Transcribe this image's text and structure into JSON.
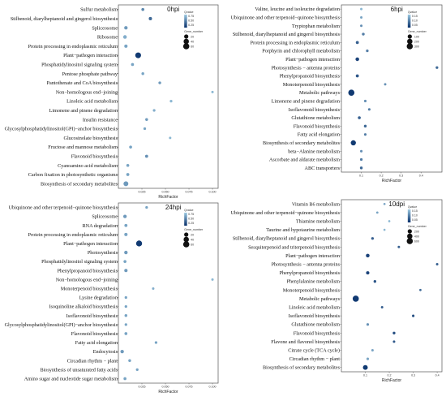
{
  "colors": {
    "low": "#08306b",
    "high": "#9ecae1",
    "frame": "#555555"
  },
  "chart_data": [
    {
      "type": "scatter",
      "title": "0hpi",
      "xlabel": "RichFactor",
      "xlim": [
        0,
        0.106
      ],
      "xticks": [
        0.025,
        0.05,
        0.075,
        0.1
      ],
      "xtick_labels": [
        "0.025",
        "0.050",
        "0.075",
        "0.100"
      ],
      "legend_qvalue": {
        "title": "Qvalue",
        "ticks": [
          "0.75",
          "0.50",
          "0.25"
        ]
      },
      "legend_gene": {
        "title": "Gene_number",
        "items": [
          {
            "label": "20",
            "value": 20
          },
          {
            "label": "40",
            "value": 40
          },
          {
            "label": "60",
            "value": 60
          }
        ]
      },
      "points": [
        {
          "term": "Sulfur metabolism",
          "x": 0.026,
          "q": 0.45,
          "gene": 5
        },
        {
          "term": "Stilbenoid, diarylheptanoid and gingerol biosynthesis",
          "x": 0.034,
          "q": 0.3,
          "gene": 8
        },
        {
          "term": "Spliceosome",
          "x": 0.008,
          "q": 0.55,
          "gene": 10
        },
        {
          "term": "Ribosome",
          "x": 0.007,
          "q": 0.65,
          "gene": 12
        },
        {
          "term": "Protein processing in endoplasmic reticulum",
          "x": 0.008,
          "q": 0.6,
          "gene": 8
        },
        {
          "term": "Plant−pathogen interaction",
          "x": 0.021,
          "q": 0.05,
          "gene": 50
        },
        {
          "term": "Phosphatidylinositol signaling system",
          "x": 0.015,
          "q": 0.6,
          "gene": 5
        },
        {
          "term": "Pentose phosphate pathway",
          "x": 0.026,
          "q": 0.6,
          "gene": 4
        },
        {
          "term": "Pantothenate and CoA biosynthesis",
          "x": 0.044,
          "q": 0.55,
          "gene": 4
        },
        {
          "term": "Non−homologous end−joining",
          "x": 0.1,
          "q": 0.7,
          "gene": 2
        },
        {
          "term": "Linoleic acid metabolism",
          "x": 0.056,
          "q": 0.7,
          "gene": 3
        },
        {
          "term": "Limonene and pinene degradation",
          "x": 0.038,
          "q": 0.65,
          "gene": 3
        },
        {
          "term": "Insulin resistance",
          "x": 0.03,
          "q": 0.55,
          "gene": 4
        },
        {
          "term": "Glycosylphosphatidylinositol(GPI)−anchor biosynthesis",
          "x": 0.028,
          "q": 0.6,
          "gene": 3
        },
        {
          "term": "Glucosinolate biosynthesis",
          "x": 0.055,
          "q": 0.7,
          "gene": 2
        },
        {
          "term": "Fructose and mannose metabolism",
          "x": 0.013,
          "q": 0.6,
          "gene": 5
        },
        {
          "term": "Flavonoid biosynthesis",
          "x": 0.03,
          "q": 0.5,
          "gene": 6
        },
        {
          "term": "Cyanoamino acid metabolism",
          "x": 0.01,
          "q": 0.6,
          "gene": 5
        },
        {
          "term": "Carbon fixation in photosynthetic organisms",
          "x": 0.01,
          "q": 0.6,
          "gene": 6
        },
        {
          "term": "Biosynthesis of secondary metabolites",
          "x": 0.008,
          "q": 0.55,
          "gene": 30
        }
      ]
    },
    {
      "type": "scatter",
      "title": "6hpi",
      "xlabel": "RichFactor",
      "xlim": [
        0,
        0.505
      ],
      "xticks": [
        0.1,
        0.2,
        0.3,
        0.4
      ],
      "xtick_labels": [
        "0.1",
        "0.2",
        "0.3",
        "0.4"
      ],
      "legend_qvalue": {
        "title": "Qvalue",
        "ticks": [
          "0.15",
          "0.10",
          "0.05"
        ]
      },
      "legend_gene": {
        "title": "Gene_number",
        "items": [
          {
            "label": "100",
            "value": 100
          },
          {
            "label": "200",
            "value": 200
          },
          {
            "label": "300",
            "value": 300
          }
        ]
      },
      "points": [
        {
          "term": "Valine, leucine and isoleucine degradation",
          "x": 0.1,
          "q": 0.14,
          "gene": 10
        },
        {
          "term": "Ubiquinone and other terpenoid−quinone biosynthesis",
          "x": 0.1,
          "q": 0.12,
          "gene": 10
        },
        {
          "term": "Tryptophan metabolism",
          "x": 0.1,
          "q": 0.1,
          "gene": 10
        },
        {
          "term": "Stilbenoid, diarylheptanoid and gingerol biosynthesis",
          "x": 0.11,
          "q": 0.08,
          "gene": 20
        },
        {
          "term": "Protein processing in endoplasmic reticulum",
          "x": 0.08,
          "q": 0.05,
          "gene": 30
        },
        {
          "term": "Porphyrin and chlorophyll metabolism",
          "x": 0.13,
          "q": 0.08,
          "gene": 15
        },
        {
          "term": "Plant−pathogen interaction",
          "x": 0.08,
          "q": 0.02,
          "gene": 60
        },
        {
          "term": "Photosynthesis − antenna proteins",
          "x": 0.48,
          "q": 0.06,
          "gene": 15
        },
        {
          "term": "Phenylpropanoid biosynthesis",
          "x": 0.08,
          "q": 0.04,
          "gene": 30
        },
        {
          "term": "Monoterpenoid biosynthesis",
          "x": 0.22,
          "q": 0.1,
          "gene": 8
        },
        {
          "term": "Metabolic pathways",
          "x": 0.05,
          "q": 0.01,
          "gene": 300
        },
        {
          "term": "Limonene and pinene degradation",
          "x": 0.12,
          "q": 0.1,
          "gene": 12
        },
        {
          "term": "Isoflavonoid biosynthesis",
          "x": 0.14,
          "q": 0.08,
          "gene": 12
        },
        {
          "term": "Glutathione metabolism",
          "x": 0.09,
          "q": 0.05,
          "gene": 25
        },
        {
          "term": "Flavonoid biosynthesis",
          "x": 0.12,
          "q": 0.06,
          "gene": 20
        },
        {
          "term": "Fatty acid elongation",
          "x": 0.12,
          "q": 0.08,
          "gene": 12
        },
        {
          "term": "Biosynthesis of secondary metabolites",
          "x": 0.06,
          "q": 0.01,
          "gene": 180
        },
        {
          "term": "beta−Alanine metabolism",
          "x": 0.1,
          "q": 0.1,
          "gene": 12
        },
        {
          "term": "Ascorbate and aldarate metabolism",
          "x": 0.1,
          "q": 0.08,
          "gene": 15
        },
        {
          "term": "ABC transporters",
          "x": 0.1,
          "q": 0.06,
          "gene": 20
        }
      ]
    },
    {
      "type": "scatter",
      "title": "24hpi",
      "xlabel": "RichFactor",
      "xlim": [
        0,
        0.106
      ],
      "xticks": [
        0.025,
        0.05,
        0.075,
        0.1
      ],
      "xtick_labels": [
        "0.025",
        "0.050",
        "0.075",
        "0.100"
      ],
      "legend_qvalue": {
        "title": "Qvalue",
        "ticks": [
          "0.75",
          "0.50",
          "0.25"
        ]
      },
      "legend_gene": {
        "title": "Gene_number",
        "items": [
          {
            "label": "20",
            "value": 20
          },
          {
            "label": "40",
            "value": 40
          },
          {
            "label": "60",
            "value": 60
          }
        ]
      },
      "points": [
        {
          "term": "Ubiquinone and other terpenoid−quinone biosynthesis",
          "x": 0.03,
          "q": 0.6,
          "gene": 3
        },
        {
          "term": "Spliceosome",
          "x": 0.007,
          "q": 0.55,
          "gene": 10
        },
        {
          "term": "RNA degradation",
          "x": 0.008,
          "q": 0.6,
          "gene": 6
        },
        {
          "term": "Protein processing in endoplasmic reticulum",
          "x": 0.008,
          "q": 0.6,
          "gene": 8
        },
        {
          "term": "Plant−pathogen interaction",
          "x": 0.022,
          "q": 0.05,
          "gene": 55
        },
        {
          "term": "Photosynthesis",
          "x": 0.008,
          "q": 0.55,
          "gene": 10
        },
        {
          "term": "Phosphatidylinositol signaling system",
          "x": 0.007,
          "q": 0.6,
          "gene": 5
        },
        {
          "term": "Phenylpropanoid biosynthesis",
          "x": 0.008,
          "q": 0.55,
          "gene": 8
        },
        {
          "term": "Non−homologous end−joining",
          "x": 0.1,
          "q": 0.7,
          "gene": 2
        },
        {
          "term": "Monoterpenoid biosynthesis",
          "x": 0.037,
          "q": 0.65,
          "gene": 2
        },
        {
          "term": "Lysine degradation",
          "x": 0.008,
          "q": 0.6,
          "gene": 3
        },
        {
          "term": "Isoquinoline alkaloid biosynthesis",
          "x": 0.008,
          "q": 0.6,
          "gene": 3
        },
        {
          "term": "Isoflavonoid biosynthesis",
          "x": 0.008,
          "q": 0.6,
          "gene": 4
        },
        {
          "term": "Glycosylphosphatidylinositol(GPI)−anchor biosynthesis",
          "x": 0.008,
          "q": 0.6,
          "gene": 3
        },
        {
          "term": "Flavonoid biosynthesis",
          "x": 0.008,
          "q": 0.6,
          "gene": 5
        },
        {
          "term": "Fatty acid elongation",
          "x": 0.04,
          "q": 0.6,
          "gene": 3
        },
        {
          "term": "Endocytosis",
          "x": 0.004,
          "q": 0.55,
          "gene": 10
        },
        {
          "term": "Circadian rhythm − plant",
          "x": 0.012,
          "q": 0.6,
          "gene": 4
        },
        {
          "term": "Biosynthesis of unsaturated fatty acids",
          "x": 0.02,
          "q": 0.6,
          "gene": 3
        },
        {
          "term": "Amino sugar and nucleotide sugar metabolism",
          "x": 0.007,
          "q": 0.6,
          "gene": 5
        }
      ]
    },
    {
      "type": "scatter",
      "title": "10dpi",
      "xlabel": "RichFactor",
      "xlim": [
        0,
        0.42
      ],
      "xticks": [
        0.1,
        0.2,
        0.3,
        0.4
      ],
      "xtick_labels": [
        "0.1",
        "0.2",
        "0.3",
        "0.4"
      ],
      "legend_qvalue": {
        "title": "Qvalue",
        "ticks": [
          "0.15",
          "0.10",
          "0.05"
        ]
      },
      "legend_gene": {
        "title": "Gene_number",
        "items": [
          {
            "label": "200",
            "value": 200
          },
          {
            "label": "400",
            "value": 400
          },
          {
            "label": "600",
            "value": 600
          }
        ]
      },
      "points": [
        {
          "term": "Vitamin B6 metabolism",
          "x": 0.18,
          "q": 0.12,
          "gene": 10
        },
        {
          "term": "Ubiquinone and other terpenoid−quinone biosynthesis",
          "x": 0.15,
          "q": 0.12,
          "gene": 12
        },
        {
          "term": "Thiamine metabolism",
          "x": 0.2,
          "q": 0.14,
          "gene": 8
        },
        {
          "term": "Taurine and hypotaurine metabolism",
          "x": 0.18,
          "q": 0.14,
          "gene": 8
        },
        {
          "term": "Stilbenoid, diarylheptanoid and gingerol biosynthesis",
          "x": 0.13,
          "q": 0.05,
          "gene": 30
        },
        {
          "term": "Sesquiterpenoid and triterpenoid biosynthesis",
          "x": 0.24,
          "q": 0.05,
          "gene": 20
        },
        {
          "term": "Plant−pathogen interaction",
          "x": 0.11,
          "q": 0.02,
          "gene": 120
        },
        {
          "term": "Photosynthesis − antenna proteins",
          "x": 0.4,
          "q": 0.05,
          "gene": 20
        },
        {
          "term": "Phenylpropanoid biosynthesis",
          "x": 0.11,
          "q": 0.02,
          "gene": 80
        },
        {
          "term": "Phenylalanine metabolism",
          "x": 0.14,
          "q": 0.04,
          "gene": 35
        },
        {
          "term": "Monoterpenoid biosynthesis",
          "x": 0.33,
          "q": 0.06,
          "gene": 12
        },
        {
          "term": "Metabolic pathways",
          "x": 0.06,
          "q": 0.01,
          "gene": 600
        },
        {
          "term": "Linoleic acid metabolism",
          "x": 0.17,
          "q": 0.05,
          "gene": 20
        },
        {
          "term": "Isoflavonoid biosynthesis",
          "x": 0.3,
          "q": 0.03,
          "gene": 25
        },
        {
          "term": "Glutathione metabolism",
          "x": 0.11,
          "q": 0.1,
          "gene": 25
        },
        {
          "term": "Flavonoid biosynthesis",
          "x": 0.22,
          "q": 0.03,
          "gene": 35
        },
        {
          "term": "Flavone and flavonol biosynthesis",
          "x": 0.22,
          "q": 0.04,
          "gene": 20
        },
        {
          "term": "Citrate cycle (TCA cycle)",
          "x": 0.13,
          "q": 0.12,
          "gene": 20
        },
        {
          "term": "Circadian rhythm − plant",
          "x": 0.11,
          "q": 0.12,
          "gene": 25
        },
        {
          "term": "Biosynthesis of secondary metabolites",
          "x": 0.1,
          "q": 0.01,
          "gene": 300
        }
      ]
    }
  ]
}
